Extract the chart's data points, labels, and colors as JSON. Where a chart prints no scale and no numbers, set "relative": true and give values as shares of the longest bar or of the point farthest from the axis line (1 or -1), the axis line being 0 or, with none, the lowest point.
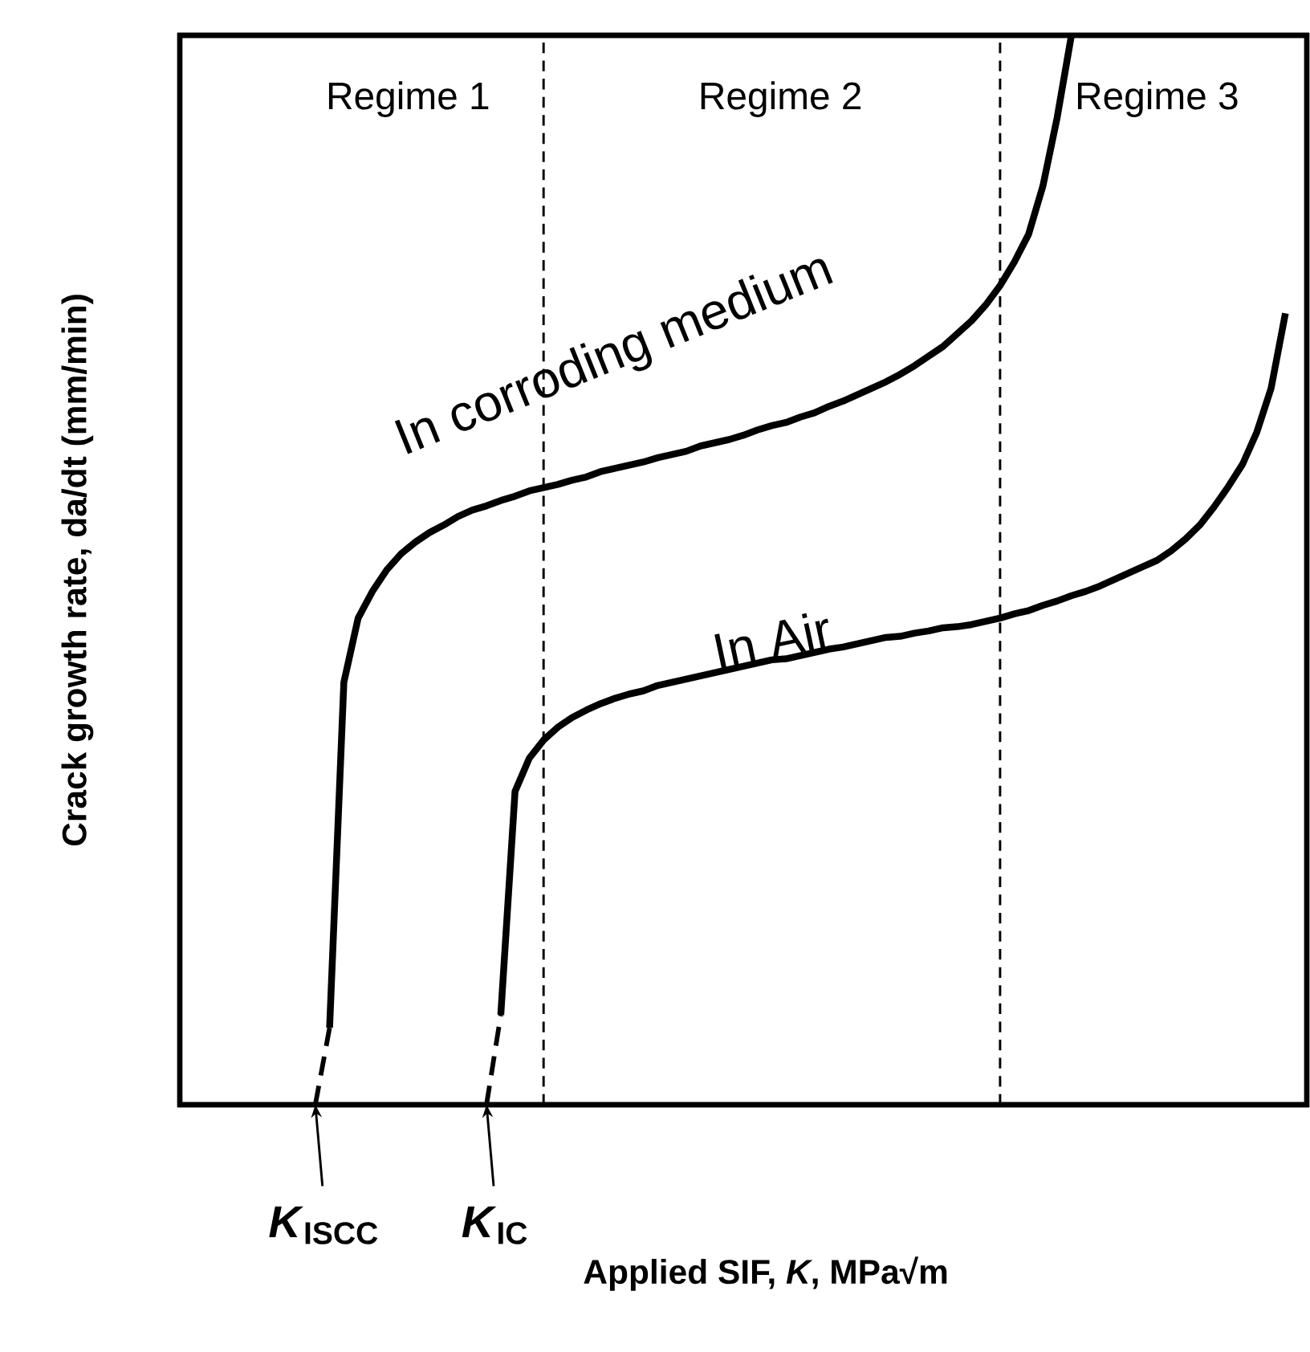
{
  "chart_data": {
    "type": "line",
    "relative": true,
    "xlabel": "Applied SIF, *K*, MPa√m",
    "ylabel": "Crack growth rate, da/dt (mm/min)",
    "tick_labels": false,
    "line_style": "solid",
    "marker": "none",
    "categories": [
      null,
      null,
      null,
      null,
      null,
      null,
      null,
      null,
      null,
      null,
      null,
      null,
      null,
      null,
      null,
      null,
      null,
      null,
      null,
      null,
      null,
      null,
      null,
      null,
      null,
      null,
      null,
      null,
      null,
      null,
      null,
      null,
      null,
      null,
      null,
      null,
      null,
      null,
      null,
      null,
      null,
      null,
      null,
      null,
      null,
      null,
      null,
      null,
      null,
      null,
      null,
      null,
      null,
      null,
      null,
      null,
      null,
      null,
      null,
      null,
      null,
      null,
      null,
      null,
      null,
      null,
      null,
      null,
      null,
      null,
      null,
      null,
      null,
      null,
      null,
      null,
      null,
      null,
      null
    ],
    "series": [
      {
        "name": "In corroding medium",
        "color": "#000000",
        "values": [
          null,
          null,
          null,
          null,
          null,
          null,
          null,
          null,
          null,
          null,
          0.072,
          0.395,
          0.455,
          0.48,
          0.5,
          0.515,
          0.526,
          0.535,
          0.542,
          0.55,
          0.556,
          0.56,
          0.565,
          0.569,
          0.574,
          0.577,
          0.58,
          0.584,
          0.587,
          0.592,
          0.595,
          0.598,
          0.601,
          0.605,
          0.608,
          0.611,
          0.616,
          0.619,
          0.622,
          0.626,
          0.631,
          0.635,
          0.638,
          0.643,
          0.647,
          0.653,
          0.658,
          0.664,
          0.67,
          0.676,
          0.683,
          0.691,
          0.7,
          0.709,
          0.721,
          0.733,
          0.748,
          0.766,
          0.788,
          0.814,
          0.859,
          0.923,
          1.0,
          null,
          null,
          null,
          null,
          null,
          null,
          null,
          null,
          null,
          null,
          null,
          null,
          null,
          null,
          null,
          null
        ]
      },
      {
        "name": "In Air",
        "color": "#000000",
        "values": [
          null,
          null,
          null,
          null,
          null,
          null,
          null,
          null,
          null,
          null,
          null,
          null,
          null,
          null,
          null,
          null,
          null,
          null,
          null,
          null,
          null,
          null,
          0.084,
          0.293,
          0.324,
          0.341,
          0.353,
          0.362,
          0.369,
          0.375,
          0.38,
          0.384,
          0.387,
          0.392,
          0.395,
          0.398,
          0.401,
          0.404,
          0.407,
          0.41,
          0.413,
          0.416,
          0.417,
          0.42,
          0.423,
          0.426,
          0.428,
          0.431,
          0.434,
          0.437,
          0.438,
          0.441,
          0.443,
          0.446,
          0.447,
          0.449,
          0.452,
          0.455,
          0.459,
          0.462,
          0.467,
          0.471,
          0.476,
          0.48,
          0.485,
          0.491,
          0.497,
          0.503,
          0.509,
          0.518,
          0.529,
          0.542,
          0.559,
          0.578,
          0.599,
          0.629,
          0.67,
          0.74,
          null
        ]
      },
      {
        "color": "#000000",
        "line_style": "dashed",
        "values": [
          null,
          null,
          null,
          null,
          null,
          null,
          null,
          null,
          null,
          0,
          0.072,
          null,
          null,
          null,
          null,
          null,
          null,
          null,
          null,
          null,
          null,
          null,
          null,
          null,
          null,
          null,
          null,
          null,
          null,
          null,
          null,
          null,
          null,
          null,
          null,
          null,
          null,
          null,
          null,
          null,
          null,
          null,
          null,
          null,
          null,
          null,
          null,
          null,
          null,
          null,
          null,
          null,
          null,
          null,
          null,
          null,
          null,
          null,
          null,
          null,
          null,
          null,
          null,
          null,
          null,
          null,
          null,
          null,
          null,
          null,
          null,
          null,
          null,
          null,
          null,
          null,
          null,
          null,
          null
        ]
      },
      {
        "color": "#000000",
        "line_style": "dashed",
        "values": [
          null,
          null,
          null,
          null,
          null,
          null,
          null,
          null,
          null,
          null,
          null,
          null,
          null,
          null,
          null,
          null,
          null,
          null,
          null,
          null,
          null,
          0,
          0.084,
          null,
          null,
          null,
          null,
          null,
          null,
          null,
          null,
          null,
          null,
          null,
          null,
          null,
          null,
          null,
          null,
          null,
          null,
          null,
          null,
          null,
          null,
          null,
          null,
          null,
          null,
          null,
          null,
          null,
          null,
          null,
          null,
          null,
          null,
          null,
          null,
          null,
          null,
          null,
          null,
          null,
          null,
          null,
          null,
          null,
          null,
          null,
          null,
          null,
          null,
          null,
          null,
          null,
          null,
          null,
          null
        ]
      }
    ],
    "annotations": [
      "Regime 1",
      "Regime 2",
      "Regime 3",
      "*K*$_{ISCC}$",
      "*K*$_{IC}$"
    ]
  }
}
